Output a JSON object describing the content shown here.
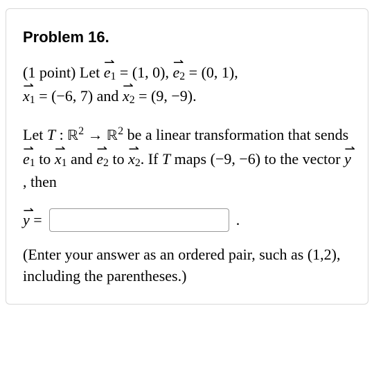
{
  "title": "Problem 16.",
  "p1": {
    "points": "(1 point) Let ",
    "e1_vec": "e",
    "e1_sub": "1",
    "eq": " = ",
    "e1_val": "(1, 0)",
    "sep": ", ",
    "e2_vec": "e",
    "e2_sub": "2",
    "e2_val": "(0, 1)",
    "comma": ",",
    "x1_vec": "x",
    "x1_sub": "1",
    "x1_val": "(−6, 7)",
    "and": " and ",
    "x2_vec": "x",
    "x2_sub": "2",
    "x2_val": "(9, −9)",
    "period": "."
  },
  "p2": {
    "let": "Let ",
    "T": "T",
    "colon": " : ",
    "R": "ℝ",
    "two": "2",
    "rarr": " → ",
    "be": " be a linear transformation that sends ",
    "e1_vec": "e",
    "e1_sub": "1",
    "to": " to ",
    "x1_vec": "x",
    "x1_sub": "1",
    "and": " and ",
    "e2_vec": "e",
    "e2_sub": "2",
    "x2_vec": "x",
    "x2_sub": "2",
    "ifT": ". If ",
    "maps": " maps ",
    "pair": "(−9, −6)",
    "tothe": " to the vector ",
    "y_vec": "y",
    "then": ", then"
  },
  "answer": {
    "y_vec": "y",
    "eq": " = ",
    "value": "",
    "period": "."
  },
  "hint": "(Enter your answer as an ordered pair, such as (1,2), including the parentheses.)"
}
